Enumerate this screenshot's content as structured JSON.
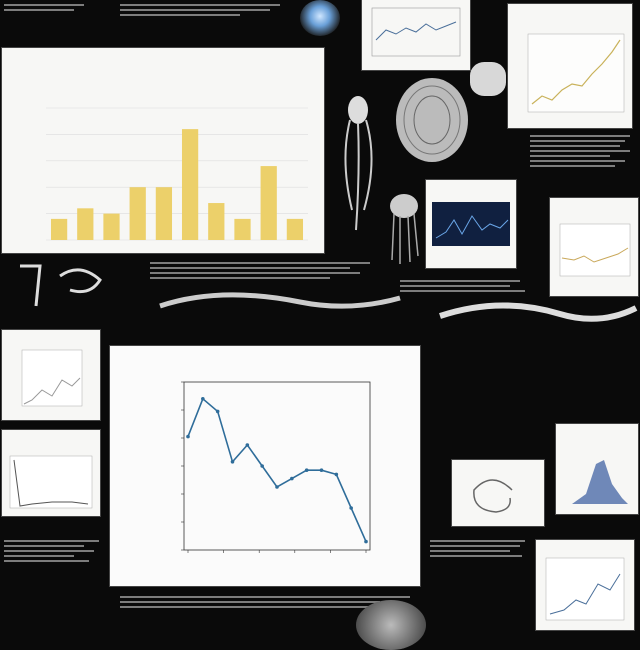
{
  "colors": {
    "background": "#0a0a0a",
    "bar_fill": "#ecd06a",
    "line_stroke": "#2f6d9a",
    "panel": "#f7f7f5"
  },
  "chart_data": [
    {
      "type": "bar",
      "categories": [
        "",
        "",
        "",
        "",
        "",
        "",
        "",
        "",
        "",
        ""
      ],
      "values": [
        4,
        6,
        5,
        10,
        10,
        21,
        7,
        4,
        14,
        4
      ],
      "ylim": [
        0,
        25
      ],
      "grid": true,
      "title": "",
      "xlabel": "",
      "ylabel": ""
    },
    {
      "type": "line",
      "x": [
        0,
        1,
        2,
        3,
        4,
        5,
        6,
        7,
        8,
        9,
        10,
        11,
        12
      ],
      "y": [
        4.2,
        5.1,
        4.8,
        3.6,
        4.0,
        3.5,
        3.0,
        3.2,
        3.4,
        3.4,
        3.3,
        2.5,
        1.7
      ],
      "ylim": [
        1.5,
        5.5
      ],
      "grid": false,
      "title": "",
      "xlabel": "",
      "ylabel": ""
    }
  ]
}
